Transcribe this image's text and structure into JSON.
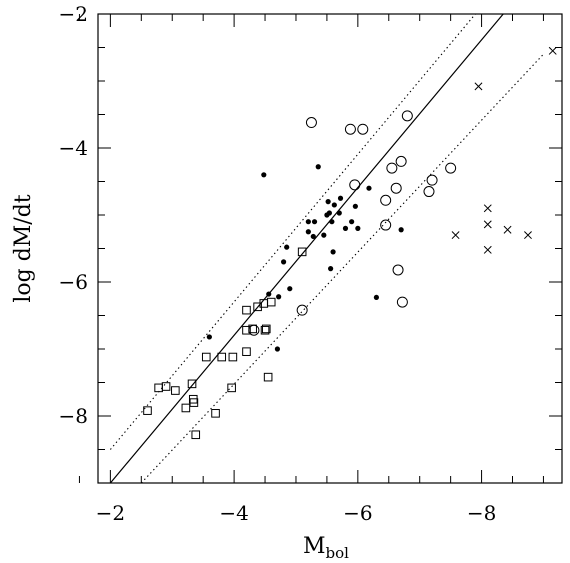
{
  "chart_data": {
    "type": "scatter",
    "title": "",
    "xlabel_main": "M",
    "xlabel_sub": "bol",
    "ylabel": "log dM/dt",
    "xlim": [
      -1.8,
      -9.3
    ],
    "ylim": [
      -9,
      -2
    ],
    "x_ticks": [
      -2,
      -4,
      -6,
      -8
    ],
    "x_tick_labels": [
      "−2",
      "−4",
      "−6",
      "−8"
    ],
    "y_ticks": [
      -2,
      -4,
      -6,
      -8
    ],
    "y_tick_labels": [
      "−2",
      "−4",
      "−6",
      "−8"
    ],
    "x_minor_step": 0.5,
    "y_minor_step": 0.5,
    "grid": false,
    "legend": "none",
    "series": [
      {
        "marker": "filled-circle",
        "points": [
          [
            -3.6,
            -6.82
          ],
          [
            -4.48,
            -4.4
          ],
          [
            -4.56,
            -6.18
          ],
          [
            -4.7,
            -7.0
          ],
          [
            -4.72,
            -6.22
          ],
          [
            -4.8,
            -5.7
          ],
          [
            -4.85,
            -5.48
          ],
          [
            -4.9,
            -6.1
          ],
          [
            -5.2,
            -5.1
          ],
          [
            -5.2,
            -5.25
          ],
          [
            -5.28,
            -5.32
          ],
          [
            -5.3,
            -5.1
          ],
          [
            -5.36,
            -4.28
          ],
          [
            -5.45,
            -5.3
          ],
          [
            -5.5,
            -5.0
          ],
          [
            -5.52,
            -4.8
          ],
          [
            -5.54,
            -4.97
          ],
          [
            -5.56,
            -5.8
          ],
          [
            -5.58,
            -5.1
          ],
          [
            -5.6,
            -5.55
          ],
          [
            -5.62,
            -4.85
          ],
          [
            -5.7,
            -4.97
          ],
          [
            -5.72,
            -4.75
          ],
          [
            -5.8,
            -5.2
          ],
          [
            -5.9,
            -5.1
          ],
          [
            -5.96,
            -4.87
          ],
          [
            -6.0,
            -5.2
          ],
          [
            -6.18,
            -4.6
          ],
          [
            -6.3,
            -6.23
          ],
          [
            -6.7,
            -5.22
          ]
        ]
      },
      {
        "marker": "open-circle",
        "points": [
          [
            -4.32,
            -6.72
          ],
          [
            -5.1,
            -6.42
          ],
          [
            -5.25,
            -3.62
          ],
          [
            -5.88,
            -3.72
          ],
          [
            -5.95,
            -4.55
          ],
          [
            -6.08,
            -3.72
          ],
          [
            -6.45,
            -4.78
          ],
          [
            -6.45,
            -5.15
          ],
          [
            -6.55,
            -4.3
          ],
          [
            -6.62,
            -4.6
          ],
          [
            -6.65,
            -5.82
          ],
          [
            -6.7,
            -4.2
          ],
          [
            -6.72,
            -6.3
          ],
          [
            -6.8,
            -3.52
          ],
          [
            -7.15,
            -4.65
          ],
          [
            -7.2,
            -4.48
          ],
          [
            -7.5,
            -4.3
          ]
        ]
      },
      {
        "marker": "open-square",
        "points": [
          [
            -2.6,
            -7.92
          ],
          [
            -2.78,
            -7.58
          ],
          [
            -2.9,
            -7.56
          ],
          [
            -3.05,
            -7.62
          ],
          [
            -3.22,
            -7.88
          ],
          [
            -3.32,
            -7.52
          ],
          [
            -3.34,
            -7.75
          ],
          [
            -3.35,
            -7.8
          ],
          [
            -3.38,
            -8.28
          ],
          [
            -3.55,
            -7.12
          ],
          [
            -3.7,
            -7.96
          ],
          [
            -3.8,
            -7.12
          ],
          [
            -3.96,
            -7.58
          ],
          [
            -3.98,
            -7.12
          ],
          [
            -4.2,
            -6.72
          ],
          [
            -4.2,
            -7.04
          ],
          [
            -4.2,
            -6.42
          ],
          [
            -4.3,
            -6.7
          ],
          [
            -4.38,
            -6.37
          ],
          [
            -4.48,
            -6.32
          ],
          [
            -4.5,
            -6.72
          ],
          [
            -4.52,
            -6.7
          ],
          [
            -4.55,
            -7.42
          ],
          [
            -4.6,
            -6.3
          ],
          [
            -5.1,
            -5.55
          ]
        ]
      },
      {
        "marker": "cross",
        "points": [
          [
            -7.58,
            -5.3
          ],
          [
            -7.95,
            -3.08
          ],
          [
            -8.1,
            -4.9
          ],
          [
            -8.1,
            -5.14
          ],
          [
            -8.1,
            -5.52
          ],
          [
            -8.42,
            -5.22
          ],
          [
            -8.75,
            -5.3
          ],
          [
            -9.15,
            -2.55
          ]
        ]
      }
    ],
    "lines": [
      {
        "style": "solid",
        "x": [
          -2.0,
          -8.35
        ],
        "y": [
          -9.0,
          -2.0
        ]
      },
      {
        "style": "dotted",
        "x": [
          -2.0,
          -7.9
        ],
        "y": [
          -8.5,
          -2.0
        ]
      },
      {
        "style": "dotted",
        "x": [
          -2.5,
          -9.0
        ],
        "y": [
          -9.0,
          -2.6
        ]
      }
    ]
  }
}
